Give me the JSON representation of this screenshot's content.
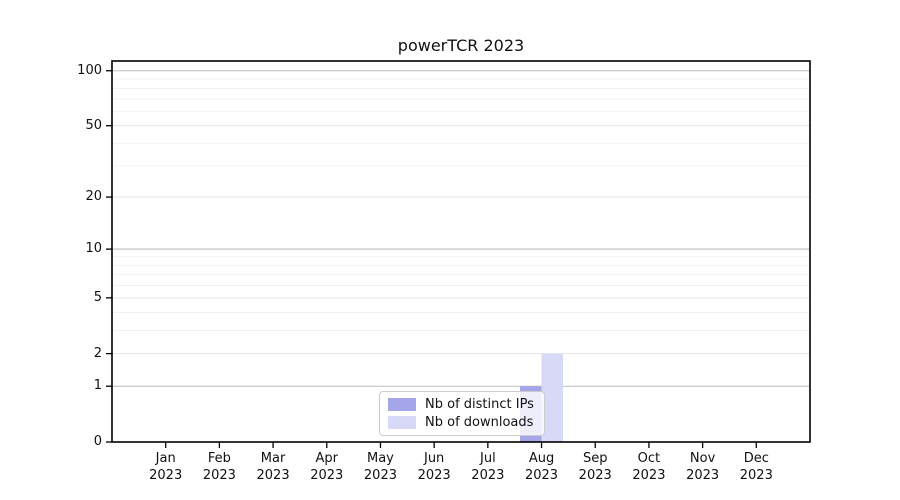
{
  "chart_data": {
    "type": "bar",
    "title": "powerTCR 2023",
    "categories": [
      {
        "month": "Jan",
        "year": "2023"
      },
      {
        "month": "Feb",
        "year": "2023"
      },
      {
        "month": "Mar",
        "year": "2023"
      },
      {
        "month": "Apr",
        "year": "2023"
      },
      {
        "month": "May",
        "year": "2023"
      },
      {
        "month": "Jun",
        "year": "2023"
      },
      {
        "month": "Jul",
        "year": "2023"
      },
      {
        "month": "Aug",
        "year": "2023"
      },
      {
        "month": "Sep",
        "year": "2023"
      },
      {
        "month": "Oct",
        "year": "2023"
      },
      {
        "month": "Nov",
        "year": "2023"
      },
      {
        "month": "Dec",
        "year": "2023"
      }
    ],
    "series": [
      {
        "name": "Nb of distinct IPs",
        "color": "#a5a5ea",
        "values": [
          0,
          0,
          0,
          0,
          0,
          0,
          0,
          1,
          0,
          0,
          0,
          0
        ]
      },
      {
        "name": "Nb of downloads",
        "color": "#d8d8f7",
        "values": [
          0,
          0,
          0,
          0,
          0,
          0,
          0,
          2,
          0,
          0,
          0,
          0
        ]
      }
    ],
    "y_axis": {
      "scale": "log1p",
      "ticks": [
        0,
        1,
        2,
        5,
        10,
        20,
        50,
        100
      ],
      "major_grid_ticks": [
        1,
        10,
        100
      ],
      "minor_gridlines": [
        3,
        4,
        6,
        7,
        8,
        9,
        30,
        40,
        60,
        70,
        80,
        90
      ],
      "ylim": [
        0,
        113
      ]
    },
    "xlabel": "",
    "ylabel": "",
    "grid": true,
    "legend_position": "bottom-center"
  },
  "colors": {
    "axis": "#000000",
    "grid_major": "#bdbdbd",
    "grid_mid": "#e6e6e6",
    "grid_minor": "#f2f2f2",
    "background": "#ffffff",
    "text": "#111111"
  }
}
